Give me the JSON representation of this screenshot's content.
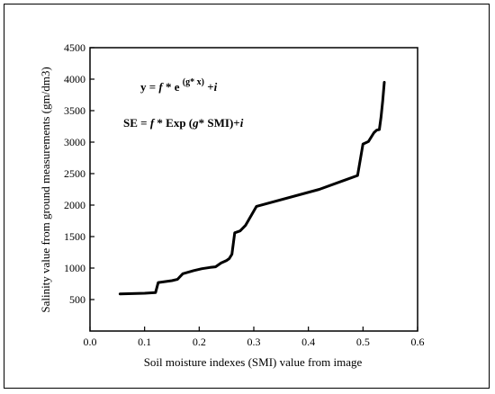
{
  "chart_data": {
    "type": "line",
    "xlabel": "Soil moisture indexes (SMI) value from image",
    "ylabel": "Salinity value from ground measurements (gm/dm3)",
    "xlim": [
      0.0,
      0.6
    ],
    "ylim": [
      0,
      4500
    ],
    "xticks": [
      "0.0",
      "0.1",
      "0.2",
      "0.3",
      "0.4",
      "0.5",
      "0.6"
    ],
    "yticks": [
      "500",
      "1000",
      "1500",
      "2000",
      "2500",
      "3000",
      "3500",
      "4000",
      "4500"
    ],
    "grid": false,
    "series": [
      {
        "x": [
          0.055,
          0.1,
          0.12,
          0.125,
          0.15,
          0.16,
          0.17,
          0.19,
          0.205,
          0.22,
          0.23,
          0.24,
          0.25,
          0.255,
          0.26,
          0.265,
          0.275,
          0.285,
          0.305,
          0.42,
          0.49,
          0.5,
          0.505,
          0.51,
          0.52,
          0.525,
          0.53,
          0.533,
          0.536,
          0.539
        ],
        "y": [
          590,
          600,
          610,
          770,
          800,
          820,
          910,
          960,
          990,
          1010,
          1020,
          1080,
          1120,
          1150,
          1220,
          1560,
          1590,
          1680,
          1980,
          2250,
          2470,
          2970,
          2990,
          3010,
          3150,
          3190,
          3200,
          3400,
          3650,
          3950
        ]
      }
    ],
    "annotations": {
      "eq1": {
        "y": "y = ",
        "f": "f",
        "mid": " * e ",
        "exp": "(g* x)",
        "plus": " +",
        "i": "i"
      },
      "eq2": {
        "pre": "SE = ",
        "f": "f",
        "mid1": " * Exp (",
        "g": "g",
        "mid2": "* SMI)+",
        "i": "i"
      }
    }
  }
}
